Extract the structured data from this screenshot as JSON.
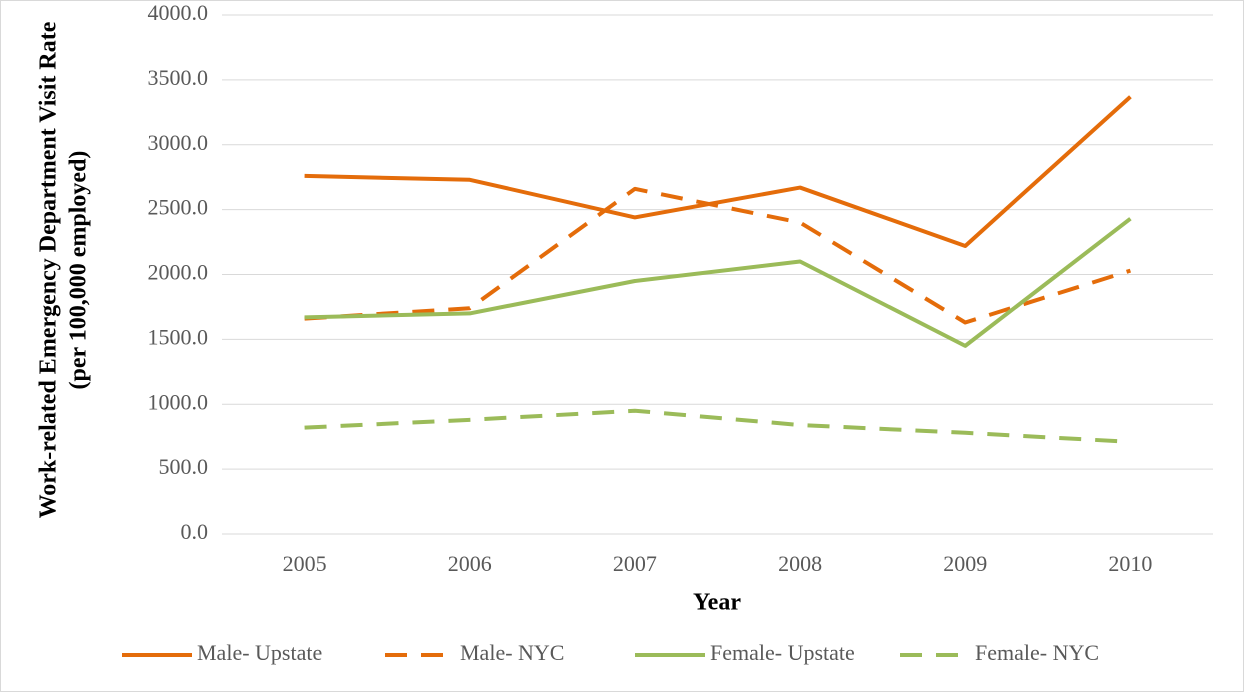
{
  "chart_data": {
    "type": "line",
    "y_label": [
      "Work-related Emergency Department Visit Rate",
      "(per 100,000 employed)"
    ],
    "x_label": "Year",
    "categories": [
      "2005",
      "2006",
      "2007",
      "2008",
      "2009",
      "2010"
    ],
    "series": [
      {
        "name": "Male- Upstate",
        "color": "#e46c0a",
        "line_style": "solid",
        "values": [
          2760,
          2730,
          2440,
          2670,
          2220,
          3370
        ]
      },
      {
        "name": "Male- NYC",
        "color": "#e46c0a",
        "line_style": "dashed",
        "values": [
          1660,
          1740,
          2660,
          2400,
          1630,
          2030
        ]
      },
      {
        "name": "Female- Upstate",
        "color": "#9bbb59",
        "line_style": "solid",
        "values": [
          1670,
          1700,
          1950,
          2100,
          1450,
          2430
        ]
      },
      {
        "name": "Female- NYC",
        "color": "#9bbb59",
        "line_style": "dashed",
        "values": [
          820,
          880,
          950,
          840,
          780,
          710
        ]
      }
    ],
    "ylim": [
      0,
      4000
    ],
    "yticks": [
      {
        "value": 0,
        "label": "0.0"
      },
      {
        "value": 500,
        "label": "500.0"
      },
      {
        "value": 1000,
        "label": "1000.0"
      },
      {
        "value": 1500,
        "label": "1500.0"
      },
      {
        "value": 2000,
        "label": "2000.0"
      },
      {
        "value": 2500,
        "label": "2500.0"
      },
      {
        "value": 3000,
        "label": "3000.0"
      },
      {
        "value": 3500,
        "label": "3500.0"
      },
      {
        "value": 4000,
        "label": "4000.0"
      }
    ],
    "grid": true,
    "legend": "bottom"
  }
}
